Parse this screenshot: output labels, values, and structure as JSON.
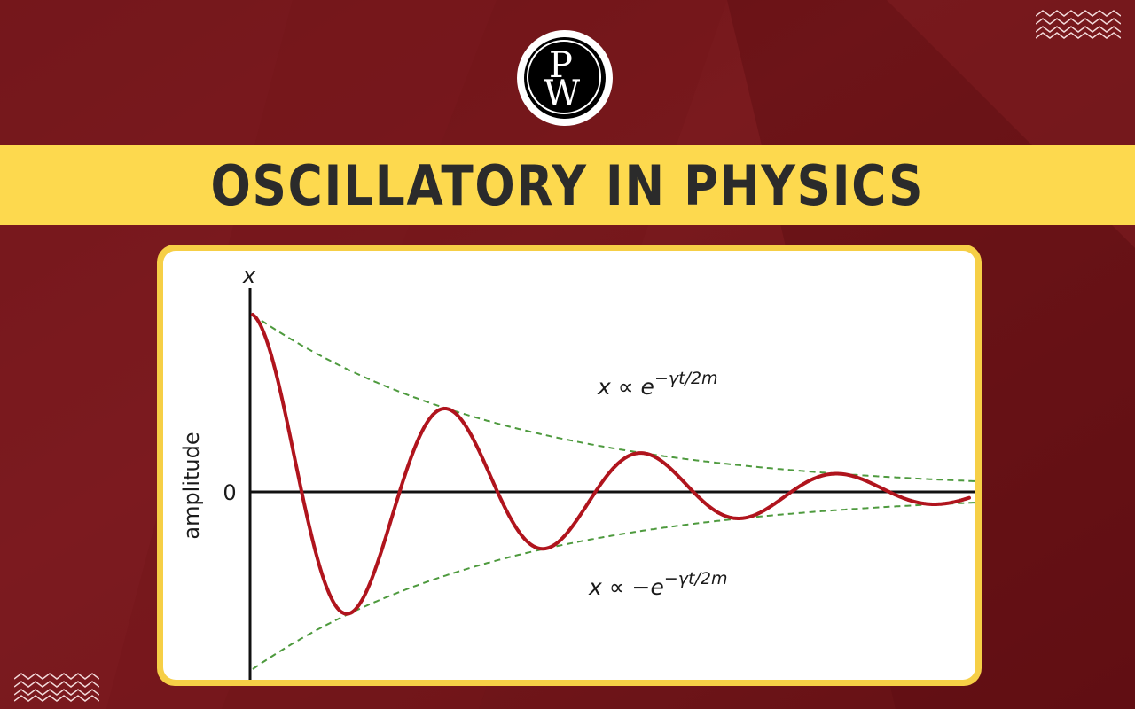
{
  "page": {
    "logo": {
      "letter_top": "P",
      "letter_bottom": "W"
    },
    "title": "OSCILLATORY IN PHYSICS"
  },
  "colors": {
    "background": "#6e1418",
    "banner": "#fdd94e",
    "card_border": "#f6cf46",
    "curve": "#b0141d",
    "envelope": "#4e9a3e",
    "axis": "#111111"
  },
  "diagram": {
    "y_axis_label": "x",
    "y_axis_side_label": "amplitude",
    "zero_label": "0",
    "upper_envelope_label": {
      "prefix": "x ∝ e",
      "exponent": "−γt/2m"
    },
    "lower_envelope_label": {
      "prefix": "x ∝ −e",
      "exponent": "−γt/2m"
    }
  }
}
